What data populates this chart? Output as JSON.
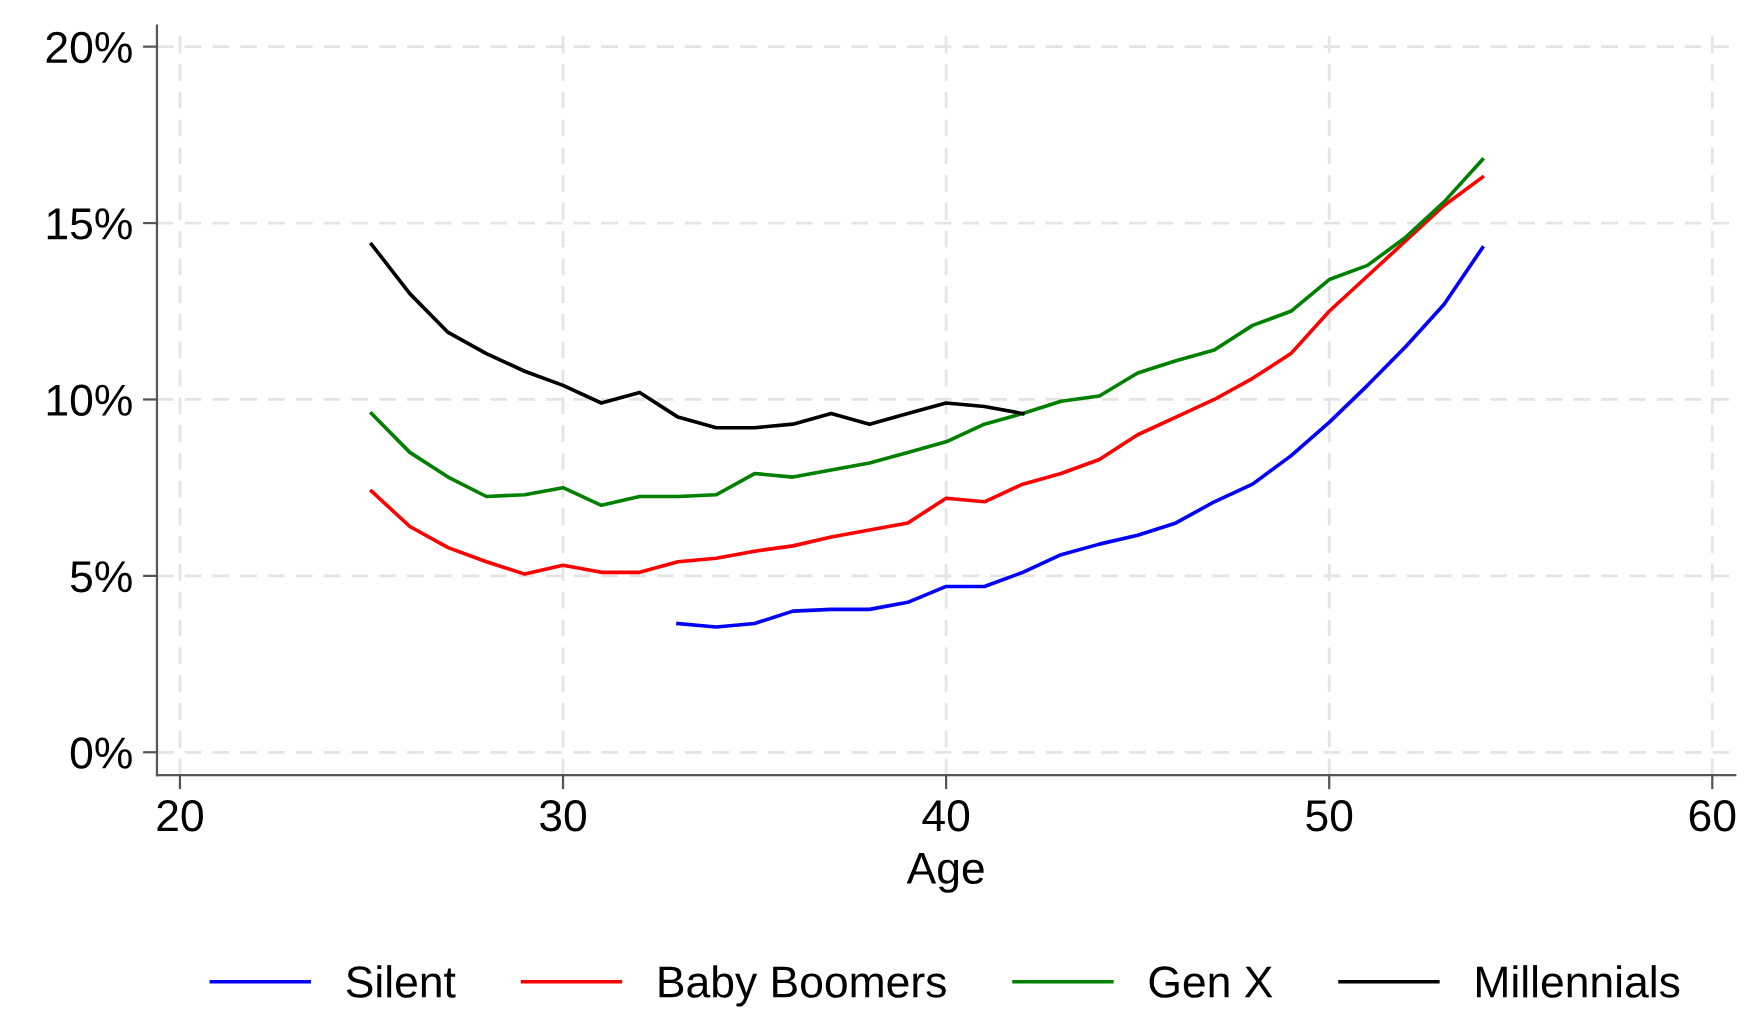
{
  "chart_data": {
    "type": "line",
    "xlabel": "Age",
    "xlim": [
      19.4,
      60.6
    ],
    "ylim": [
      -0.65,
      20.6
    ],
    "xticks": [
      20,
      30,
      40,
      50,
      60
    ],
    "yticks": [
      {
        "value": 0,
        "label": "0%"
      },
      {
        "value": 5,
        "label": "5%"
      },
      {
        "value": 10,
        "label": "10%"
      },
      {
        "value": 15,
        "label": "15%"
      },
      {
        "value": 20,
        "label": "20%"
      }
    ],
    "grid": true,
    "legend": "bottom",
    "line_style": "solid",
    "series": [
      {
        "name": "Silent",
        "color": "#0000ff",
        "x": [
          33,
          34,
          35,
          36,
          37,
          38,
          39,
          40,
          41,
          42,
          43,
          44,
          45,
          46,
          47,
          48,
          49,
          50,
          51,
          52,
          53,
          54
        ],
        "values": [
          3.65,
          3.55,
          3.65,
          4.0,
          4.05,
          4.05,
          4.25,
          4.7,
          4.7,
          5.1,
          5.6,
          5.9,
          6.15,
          6.5,
          7.1,
          7.6,
          8.4,
          9.35,
          10.4,
          11.5,
          12.7,
          14.3
        ]
      },
      {
        "name": "Baby Boomers",
        "color": "#ff0000",
        "x": [
          25,
          26,
          27,
          28,
          29,
          30,
          31,
          32,
          33,
          34,
          35,
          36,
          37,
          38,
          39,
          40,
          41,
          42,
          43,
          44,
          45,
          46,
          47,
          48,
          49,
          50,
          51,
          52,
          53,
          54
        ],
        "values": [
          7.4,
          6.4,
          5.8,
          5.4,
          5.05,
          5.3,
          5.1,
          5.1,
          5.4,
          5.5,
          5.7,
          5.85,
          6.1,
          6.3,
          6.5,
          7.2,
          7.1,
          7.6,
          7.9,
          8.3,
          9.0,
          9.5,
          10.0,
          10.6,
          11.3,
          12.5,
          13.5,
          14.5,
          15.5,
          16.3
        ]
      },
      {
        "name": "Gen X",
        "color": "#008000",
        "x": [
          25,
          26,
          27,
          28,
          29,
          30,
          31,
          32,
          33,
          34,
          35,
          36,
          37,
          38,
          39,
          40,
          41,
          42,
          43,
          44,
          45,
          46,
          47,
          48,
          49,
          50,
          51,
          52,
          53,
          54
        ],
        "values": [
          9.6,
          8.5,
          7.8,
          7.25,
          7.3,
          7.5,
          7.0,
          7.25,
          7.25,
          7.3,
          7.9,
          7.8,
          8.0,
          8.2,
          8.5,
          8.8,
          9.3,
          9.6,
          9.95,
          10.1,
          10.75,
          11.1,
          11.4,
          12.1,
          12.5,
          13.4,
          13.8,
          14.6,
          15.6,
          16.8
        ]
      },
      {
        "name": "Millennials",
        "color": "#000000",
        "x": [
          25,
          26,
          27,
          28,
          29,
          30,
          31,
          32,
          33,
          34,
          35,
          36,
          37,
          38,
          39,
          40,
          41,
          42
        ],
        "values": [
          14.4,
          13.0,
          11.9,
          11.3,
          10.8,
          10.4,
          9.9,
          10.2,
          9.5,
          9.2,
          9.2,
          9.3,
          9.6,
          9.3,
          9.6,
          9.9,
          9.8,
          9.6
        ]
      }
    ]
  }
}
